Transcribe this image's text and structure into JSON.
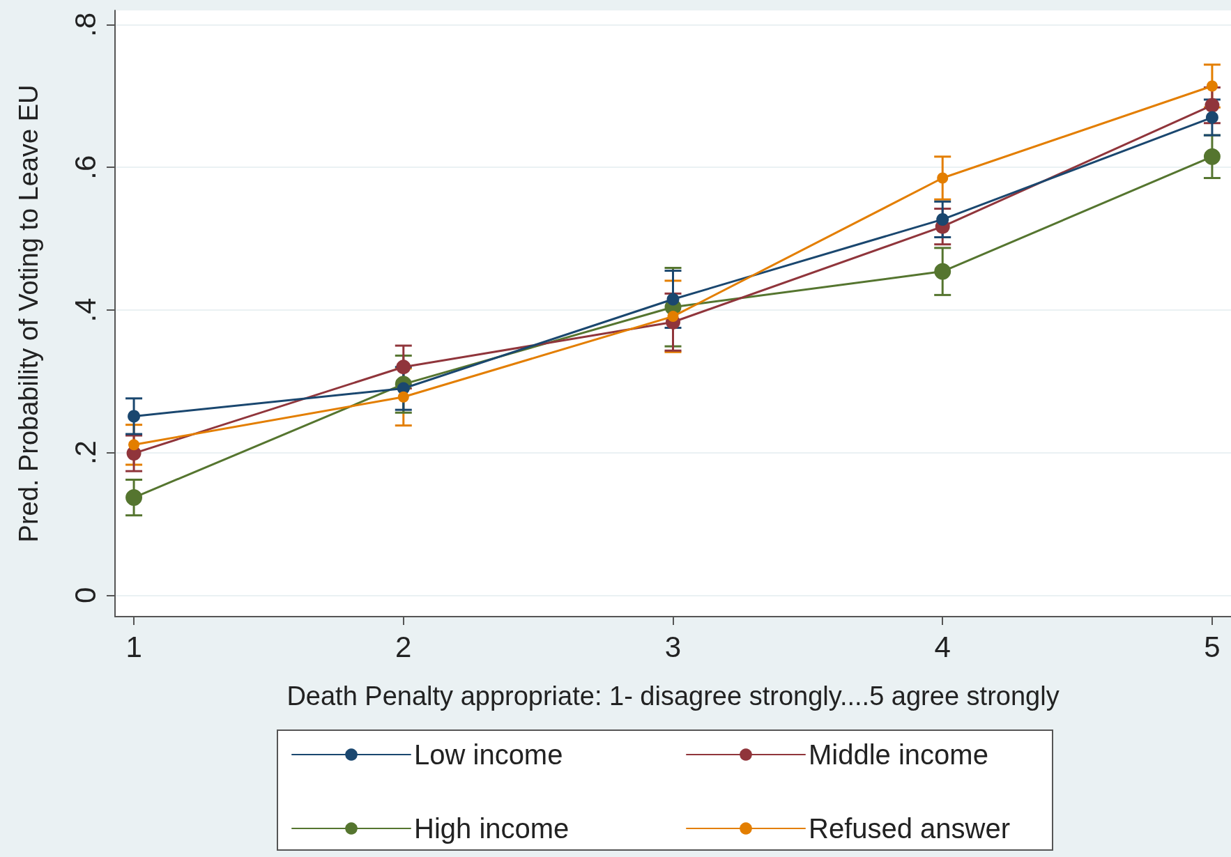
{
  "chart_data": {
    "type": "line",
    "xlabel": "Death Penalty appropriate: 1- disagree strongly....5 agree strongly",
    "ylabel": "Pred. Probability of Voting to Leave EU",
    "x": [
      1,
      2,
      3,
      4,
      5
    ],
    "series": [
      {
        "name": "Low income",
        "color": "#1a476f",
        "values": [
          0.251,
          0.29,
          0.415,
          0.527,
          0.67
        ],
        "errors": [
          0.025,
          0.03,
          0.04,
          0.025,
          0.025
        ]
      },
      {
        "name": "Middle income",
        "color": "#90353b",
        "values": [
          0.199,
          0.32,
          0.383,
          0.517,
          0.687
        ],
        "errors": [
          0.025,
          0.03,
          0.04,
          0.025,
          0.025
        ]
      },
      {
        "name": "High income",
        "color": "#55752f",
        "values": [
          0.137,
          0.296,
          0.404,
          0.454,
          0.615
        ],
        "errors": [
          0.025,
          0.04,
          0.055,
          0.033,
          0.03
        ]
      },
      {
        "name": "Refused answer",
        "color": "#e37e00",
        "values": [
          0.211,
          0.278,
          0.391,
          0.585,
          0.714
        ],
        "errors": [
          0.028,
          0.04,
          0.05,
          0.03,
          0.03
        ]
      }
    ],
    "xlim": [
      0.93,
      5.07
    ],
    "xticks": [
      1,
      2,
      3,
      4,
      5
    ],
    "ylim": [
      -0.03,
      0.82
    ],
    "yticks": [
      {
        "value": 0,
        "label": "0"
      },
      {
        "value": 0.2,
        "label": ".2"
      },
      {
        "value": 0.4,
        "label": ".4"
      },
      {
        "value": 0.6,
        "label": ".6"
      },
      {
        "value": 0.8,
        "label": ".8"
      }
    ],
    "grid": "y",
    "legend": "bottom",
    "marker": "circle",
    "line_style": "solid"
  }
}
